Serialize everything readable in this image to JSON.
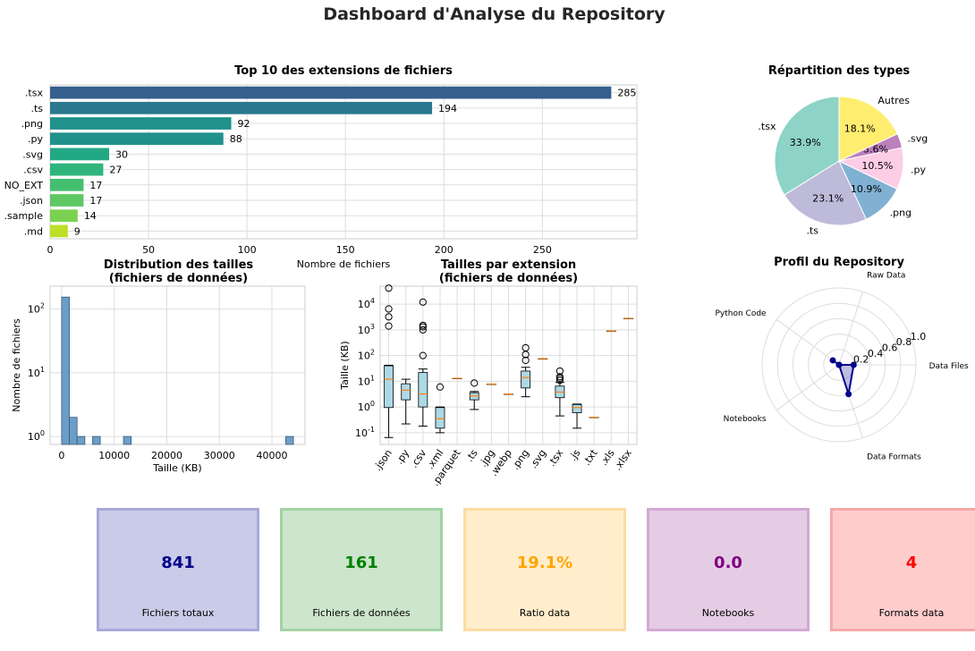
{
  "title": "Dashboard d'Analyse du Repository",
  "chart_data": [
    {
      "type": "bar",
      "orientation": "horizontal",
      "title": "Top 10 des extensions de fichiers",
      "xlabel": "Nombre de fichiers",
      "categories": [
        ".tsx",
        ".ts",
        ".png",
        ".py",
        ".svg",
        ".csv",
        "NO_EXT",
        ".json",
        ".sample",
        ".md"
      ],
      "values": [
        285,
        194,
        92,
        88,
        30,
        27,
        17,
        17,
        14,
        9
      ],
      "colors": [
        "#355f8d",
        "#2a788e",
        "#21918c",
        "#21918c",
        "#22a884",
        "#2fb47c",
        "#44bf70",
        "#5ec962",
        "#7ad151",
        "#bddf26"
      ],
      "xticks": [
        0,
        50,
        100,
        150,
        200,
        250
      ],
      "xlim": [
        0,
        298
      ],
      "grid": true
    },
    {
      "type": "pie",
      "title": "Répartition des types",
      "labels": [
        ".tsx",
        ".ts",
        ".png",
        ".py",
        ".svg",
        "Autres"
      ],
      "values": [
        33.9,
        23.1,
        10.9,
        10.5,
        3.6,
        18.1
      ],
      "pct_labels": [
        "33.9%",
        "23.1%",
        "10.9%",
        "10.5%",
        "3.6%",
        "18.1%"
      ],
      "colors": [
        "#8dd3c7",
        "#bebada",
        "#80b1d3",
        "#fccde5",
        "#bc80bd",
        "#ffed6f"
      ]
    },
    {
      "type": "bar",
      "subtype": "histogram",
      "title": "Distribution des tailles\n(fichiers de données)",
      "xlabel": "Taille (KB)",
      "ylabel": "Nombre de fichiers",
      "yscale": "log",
      "bins": [
        {
          "x0": 0,
          "x1": 1470,
          "count": 155
        },
        {
          "x0": 1470,
          "x1": 2940,
          "count": 2
        },
        {
          "x0": 2940,
          "x1": 4410,
          "count": 1
        },
        {
          "x0": 5880,
          "x1": 7350,
          "count": 1
        },
        {
          "x0": 11760,
          "x1": 13230,
          "count": 1
        },
        {
          "x0": 42630,
          "x1": 44100,
          "count": 1
        }
      ],
      "xticks": [
        0,
        10000,
        20000,
        30000,
        40000
      ],
      "ytick_labels": [
        "10^0",
        "10^1",
        "10^2"
      ],
      "xlim": [
        -2200,
        46300
      ],
      "ylim": [
        0.75,
        230
      ],
      "color": "#6a9ec8"
    },
    {
      "type": "boxplot",
      "title": "Tailles par extension\n(fichiers de données)",
      "ylabel": "Taille (KB)",
      "yscale": "log",
      "ylim": [
        0.035,
        50000
      ],
      "ytick_labels": [
        "10^-1",
        "10^0",
        "10^1",
        "10^2",
        "10^3",
        "10^4"
      ],
      "categories": [
        ".json",
        ".py",
        ".csv",
        ".xml",
        ".parquet",
        ".ts",
        ".jpg",
        ".webp",
        ".png",
        ".svg",
        ".tsx",
        ".js",
        ".txt",
        ".xls",
        ".xlsx"
      ],
      "boxes": [
        {
          "whislo": 0.065,
          "q1": 0.95,
          "med": 12,
          "q3": 40,
          "whishi": 42,
          "fliers": [
            1400,
            3200,
            6500,
            42000
          ]
        },
        {
          "whislo": 0.22,
          "q1": 1.9,
          "med": 4.5,
          "q3": 8,
          "whishi": 12,
          "fliers": []
        },
        {
          "whislo": 0.18,
          "q1": 1.0,
          "med": 3.2,
          "q3": 22,
          "whishi": 30,
          "fliers": [
            100,
            1000,
            1300,
            1500,
            12000
          ]
        },
        {
          "whislo": 0.1,
          "q1": 0.15,
          "med": 0.35,
          "q3": 0.95,
          "whishi": 1.0,
          "fliers": [
            6
          ]
        },
        {
          "whislo": 13,
          "q1": 13,
          "med": 13,
          "q3": 13,
          "whishi": 13,
          "fliers": []
        },
        {
          "whislo": 0.8,
          "q1": 1.9,
          "med": 2.7,
          "q3": 3.6,
          "whishi": 4.0,
          "fliers": [
            8.5
          ]
        },
        {
          "whislo": 7.8,
          "q1": 7.8,
          "med": 7.8,
          "q3": 7.8,
          "whishi": 7.8,
          "fliers": []
        },
        {
          "whislo": 3.2,
          "q1": 3.2,
          "med": 3.2,
          "q3": 3.2,
          "whishi": 3.2,
          "fliers": []
        },
        {
          "whislo": 2.5,
          "q1": 5.5,
          "med": 14,
          "q3": 25,
          "whishi": 35,
          "fliers": [
            65,
            110,
            200
          ]
        },
        {
          "whislo": 75,
          "q1": 75,
          "med": 75,
          "q3": 75,
          "whishi": 75,
          "fliers": []
        },
        {
          "whislo": 0.45,
          "q1": 2.3,
          "med": 3.8,
          "q3": 6.5,
          "whishi": 9,
          "fliers": [
            11,
            13,
            15,
            25
          ]
        },
        {
          "whislo": 0.15,
          "q1": 0.6,
          "med": 0.95,
          "q3": 1.25,
          "whishi": 1.3,
          "fliers": []
        },
        {
          "whislo": 0.4,
          "q1": 0.4,
          "med": 0.4,
          "q3": 0.4,
          "whishi": 0.4,
          "fliers": []
        },
        {
          "whislo": 900,
          "q1": 900,
          "med": 900,
          "q3": 900,
          "whishi": 900,
          "fliers": []
        },
        {
          "whislo": 2800,
          "q1": 2800,
          "med": 2800,
          "q3": 2800,
          "whishi": 2800,
          "fliers": []
        }
      ],
      "box_color": "#add8e6",
      "median_color": "#ff7f0e"
    },
    {
      "type": "radar",
      "title": "Profil du Repository",
      "axes": [
        "Data Files",
        "Raw Data",
        "Python Code",
        "Notebooks",
        "Data Formats"
      ],
      "values": [
        0.19,
        0.0,
        0.1,
        0.0,
        0.4
      ],
      "rlim": [
        0,
        1.0
      ],
      "rtick_labels": [
        "0.2",
        "0.4",
        "0.6",
        "0.8",
        "1.0"
      ],
      "color": "#00008b"
    }
  ],
  "kpis": [
    {
      "value": "841",
      "label": "Fichiers totaux",
      "color": "#00008b",
      "bg": "#cacbe8",
      "border": "#a7a9d8"
    },
    {
      "value": "161",
      "label": "Fichiers de données",
      "color": "#008000",
      "bg": "#cce5cc",
      "border": "#a3d3a3"
    },
    {
      "value": "19.1%",
      "label": "Ratio data",
      "color": "#ffa500",
      "bg": "#ffedcc",
      "border": "#fbdca2"
    },
    {
      "value": "0.0",
      "label": "Notebooks",
      "color": "#800080",
      "bg": "#e5cce5",
      "border": "#d3a8d3"
    },
    {
      "value": "4",
      "label": "Formats data",
      "color": "#ff0000",
      "bg": "#ffcccc",
      "border": "#f6a7a7"
    }
  ]
}
